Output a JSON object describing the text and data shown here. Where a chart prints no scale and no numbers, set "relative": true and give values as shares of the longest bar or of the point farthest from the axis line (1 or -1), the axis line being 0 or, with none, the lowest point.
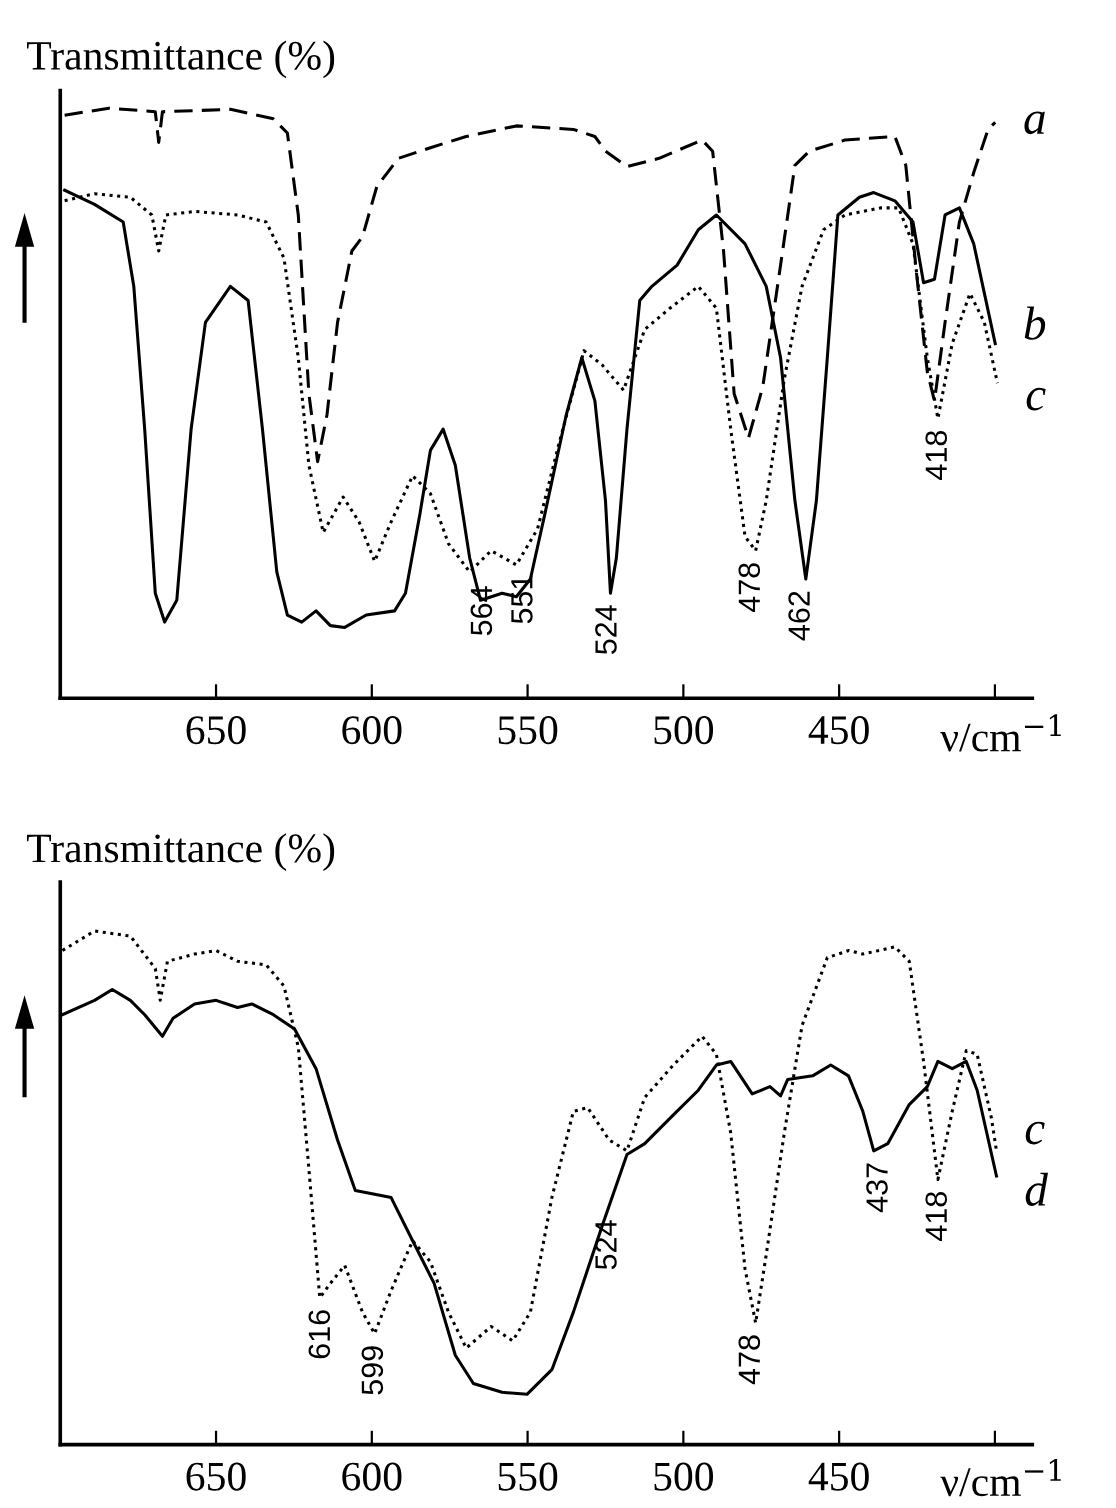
{
  "chart_data": [
    {
      "type": "line",
      "relative": true,
      "ylabel": "Transmittance (%)",
      "xlabel": "ν/cm$^{−1}$",
      "xlim": [
        700,
        388
      ],
      "xticks": [
        650,
        600,
        550,
        500,
        450,
        {
          "value": 400,
          "label": null
        }
      ],
      "series": [
        {
          "name": "a",
          "color": "#000000",
          "line_style": "dashed",
          "x": [
            698.6,
            684.4,
            669.5,
            668.4,
            667.2,
            645.4,
            631.6,
            627.1,
            623.6,
            620.2,
            617.4,
            614.4,
            611.0,
            606.4,
            603.0,
            598.4,
            591.5,
            581.2,
            569.7,
            553.6,
            535.3,
            528.4,
            525.0,
            518.1,
            507.8,
            494.0,
            490.6,
            487.1,
            483.7,
            479.1,
            474.5,
            468.8,
            464.2,
            459.6,
            448.1,
            432.1,
            428.6,
            425.2,
            421.7,
            419.4,
            416.0,
            411.4,
            406.8,
            402.2,
            399.9
          ],
          "values": [
            0.988,
            1.0,
            0.994,
            0.942,
            0.994,
            0.998,
            0.982,
            0.958,
            0.819,
            0.516,
            0.401,
            0.48,
            0.637,
            0.758,
            0.782,
            0.867,
            0.915,
            0.933,
            0.952,
            0.97,
            0.964,
            0.952,
            0.927,
            0.901,
            0.915,
            0.946,
            0.927,
            0.758,
            0.516,
            0.441,
            0.528,
            0.734,
            0.903,
            0.927,
            0.946,
            0.952,
            0.903,
            0.722,
            0.553,
            0.504,
            0.637,
            0.807,
            0.891,
            0.964,
            0.976
          ]
        },
        {
          "name": "b",
          "color": "#000000",
          "line_style": "solid",
          "x": [
            698.6,
            689.0,
            679.8,
            676.4,
            672.9,
            669.5,
            666.5,
            662.6,
            658.0,
            653.4,
            645.4,
            639.7,
            635.1,
            630.5,
            627.1,
            622.5,
            617.9,
            613.3,
            608.7,
            601.8,
            592.7,
            589.2,
            584.6,
            581.2,
            577.1,
            573.2,
            568.6,
            565.1,
            558.2,
            553.6,
            549.1,
            544.5,
            537.6,
            532.6,
            528.4,
            525.0,
            523.4,
            521.5,
            518.1,
            514.0,
            510.1,
            502.0,
            495.2,
            489.4,
            480.2,
            473.4,
            468.8,
            464.2,
            460.7,
            457.3,
            453.8,
            450.4,
            443.5,
            438.9,
            432.1,
            426.3,
            422.9,
            419.4,
            416.0,
            411.4,
            406.8,
            399.9
          ],
          "values": [
            0.861,
            0.837,
            0.807,
            0.698,
            0.456,
            0.178,
            0.129,
            0.166,
            0.456,
            0.637,
            0.698,
            0.674,
            0.456,
            0.214,
            0.141,
            0.129,
            0.148,
            0.123,
            0.12,
            0.141,
            0.148,
            0.178,
            0.311,
            0.42,
            0.456,
            0.395,
            0.238,
            0.166,
            0.178,
            0.172,
            0.202,
            0.311,
            0.48,
            0.577,
            0.504,
            0.335,
            0.178,
            0.238,
            0.456,
            0.674,
            0.698,
            0.734,
            0.794,
            0.819,
            0.77,
            0.698,
            0.577,
            0.335,
            0.202,
            0.335,
            0.577,
            0.819,
            0.849,
            0.857,
            0.843,
            0.807,
            0.704,
            0.71,
            0.819,
            0.831,
            0.77,
            0.601
          ]
        },
        {
          "name": "c",
          "color": "#000000",
          "line_style": "dotted",
          "x": [
            698.6,
            689.0,
            677.5,
            670.6,
            668.4,
            666.1,
            656.9,
            643.1,
            633.9,
            628.2,
            623.6,
            620.2,
            615.6,
            609.2,
            604.1,
            599.1,
            593.8,
            586.9,
            581.2,
            575.4,
            568.6,
            561.7,
            553.6,
            546.8,
            539.9,
            531.9,
            526.1,
            519.2,
            512.4,
            504.3,
            495.2,
            489.4,
            484.8,
            480.2,
            476.8,
            473.4,
            467.6,
            461.9,
            455.0,
            448.1,
            436.7,
            430.9,
            426.3,
            421.7,
            418.3,
            413.7,
            408.0,
            403.4,
            399.2
          ],
          "values": [
            0.843,
            0.855,
            0.849,
            0.819,
            0.758,
            0.819,
            0.825,
            0.819,
            0.807,
            0.746,
            0.577,
            0.395,
            0.281,
            0.341,
            0.299,
            0.232,
            0.299,
            0.377,
            0.347,
            0.262,
            0.214,
            0.25,
            0.226,
            0.287,
            0.432,
            0.589,
            0.565,
            0.522,
            0.625,
            0.661,
            0.698,
            0.661,
            0.456,
            0.274,
            0.25,
            0.335,
            0.541,
            0.698,
            0.794,
            0.819,
            0.831,
            0.831,
            0.77,
            0.577,
            0.474,
            0.601,
            0.686,
            0.637,
            0.534
          ]
        }
      ],
      "annotations": [
        {
          "text": "564",
          "x": 564,
          "y": 0.21
        },
        {
          "text": "551",
          "x": 551,
          "y": 0.23
        },
        {
          "text": "524",
          "x": 524,
          "y": 0.178
        },
        {
          "text": "478",
          "x": 478,
          "y": 0.25
        },
        {
          "text": "462",
          "x": 462,
          "y": 0.202
        },
        {
          "text": "418",
          "x": 418,
          "y": 0.474
        }
      ]
    },
    {
      "type": "line",
      "relative": true,
      "ylabel": "Transmittance (%)",
      "xlabel": "ν/cm$^{−1}$",
      "xlim": [
        700,
        388
      ],
      "xticks": [
        650,
        600,
        550,
        500,
        450,
        {
          "value": 400,
          "label": null
        }
      ],
      "series": [
        {
          "name": "c",
          "color": "#000000",
          "line_style": "dotted",
          "x": [
            699.3,
            689.0,
            677.5,
            669.5,
            667.9,
            665.6,
            656.9,
            650.0,
            643.1,
            633.9,
            628.2,
            623.6,
            620.2,
            616.7,
            613.3,
            608.7,
            603.0,
            599.1,
            593.8,
            586.9,
            581.2,
            575.4,
            569.7,
            561.7,
            554.8,
            549.1,
            542.2,
            535.3,
            530.7,
            523.8,
            518.1,
            512.4,
            503.2,
            494.0,
            489.4,
            484.8,
            480.2,
            476.8,
            473.4,
            467.6,
            461.9,
            453.8,
            446.9,
            442.4,
            432.1,
            427.5,
            422.9,
            418.3,
            413.7,
            409.2,
            405.7,
            401.1,
            399.5
          ],
          "values": [
            0.962,
            1.0,
            0.99,
            0.927,
            0.865,
            0.941,
            0.955,
            0.962,
            0.941,
            0.934,
            0.893,
            0.774,
            0.537,
            0.286,
            0.314,
            0.349,
            0.258,
            0.216,
            0.3,
            0.397,
            0.356,
            0.258,
            0.188,
            0.23,
            0.202,
            0.258,
            0.481,
            0.649,
            0.656,
            0.593,
            0.572,
            0.676,
            0.739,
            0.795,
            0.76,
            0.607,
            0.342,
            0.237,
            0.37,
            0.607,
            0.816,
            0.948,
            0.962,
            0.955,
            0.969,
            0.941,
            0.746,
            0.516,
            0.649,
            0.767,
            0.76,
            0.635,
            0.572
          ]
        },
        {
          "name": "d",
          "color": "#000000",
          "line_style": "solid",
          "x": [
            699.3,
            689.0,
            683.3,
            677.5,
            672.9,
            667.2,
            663.8,
            656.9,
            650.0,
            643.1,
            638.5,
            631.6,
            624.8,
            617.9,
            611.0,
            605.3,
            599.5,
            593.8,
            586.9,
            580.0,
            573.2,
            567.4,
            558.2,
            550.2,
            542.2,
            535.3,
            526.1,
            518.1,
            512.4,
            503.2,
            495.2,
            489.4,
            484.8,
            477.9,
            472.2,
            468.8,
            466.5,
            458.5,
            452.7,
            447.0,
            442.4,
            438.9,
            434.4,
            427.5,
            421.7,
            418.3,
            413.7,
            409.2,
            405.7,
            399.5
          ],
          "values": [
            0.837,
            0.865,
            0.886,
            0.865,
            0.837,
            0.795,
            0.83,
            0.858,
            0.865,
            0.851,
            0.858,
            0.837,
            0.809,
            0.732,
            0.593,
            0.495,
            0.488,
            0.481,
            0.397,
            0.314,
            0.174,
            0.119,
            0.102,
            0.098,
            0.146,
            0.258,
            0.425,
            0.565,
            0.586,
            0.642,
            0.69,
            0.739,
            0.746,
            0.683,
            0.697,
            0.679,
            0.711,
            0.718,
            0.739,
            0.718,
            0.649,
            0.572,
            0.586,
            0.662,
            0.697,
            0.746,
            0.732,
            0.746,
            0.69,
            0.523
          ]
        }
      ],
      "annotations": [
        {
          "text": "616",
          "x": 616,
          "y": 0.286
        },
        {
          "text": "599",
          "x": 599,
          "y": 0.216
        },
        {
          "text": "524",
          "x": 524,
          "y": 0.46
        },
        {
          "text": "478",
          "x": 478,
          "y": 0.237
        },
        {
          "text": "437",
          "x": 437,
          "y": 0.572
        },
        {
          "text": "418",
          "x": 418,
          "y": 0.516
        }
      ]
    }
  ]
}
